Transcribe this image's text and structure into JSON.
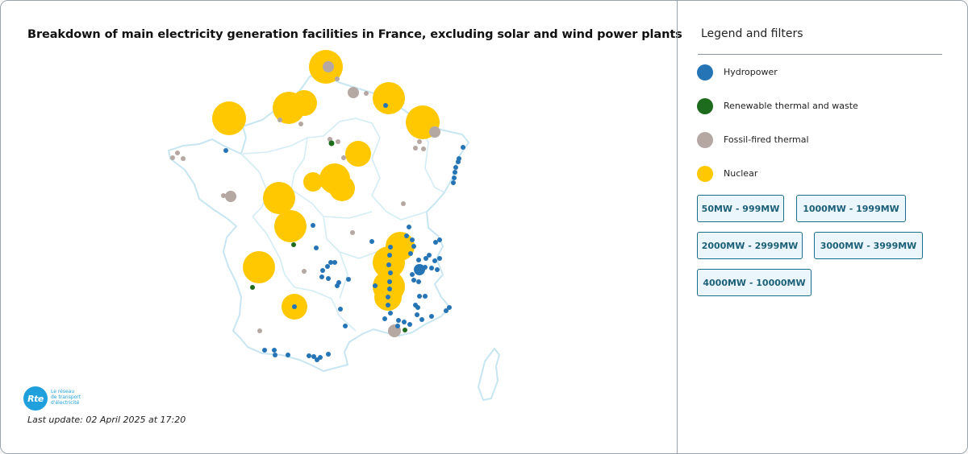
{
  "title": "Breakdown of main electricity generation facilities in France, excluding solar and wind power plants",
  "last_update": "Last update: 02 April 2025 at 17:20",
  "logo": {
    "mark": "Rte",
    "lines": [
      "Le réseau",
      "de transport",
      "d'électricité"
    ]
  },
  "legend": {
    "title": "Legend and filters",
    "items": [
      {
        "label": "Hydropower",
        "color": "#2574b6"
      },
      {
        "label": "Renewable thermal and waste",
        "color": "#1d6b1d"
      },
      {
        "label": "Fossil-fired thermal",
        "color": "#b5a7a2"
      },
      {
        "label": "Nuclear",
        "color": "#ffc800"
      }
    ],
    "filters": [
      "50MW - 999MW",
      "1000MW - 1999MW",
      "2000MW - 2999MW",
      "3000MW - 3999MW",
      "4000MW - 10000MW"
    ]
  },
  "facility_types": {
    "nuclear": "#ffc800",
    "hydro": "#2574b6",
    "fossil": "#b5a7a2",
    "renewable": "#1d6b1d"
  }
}
